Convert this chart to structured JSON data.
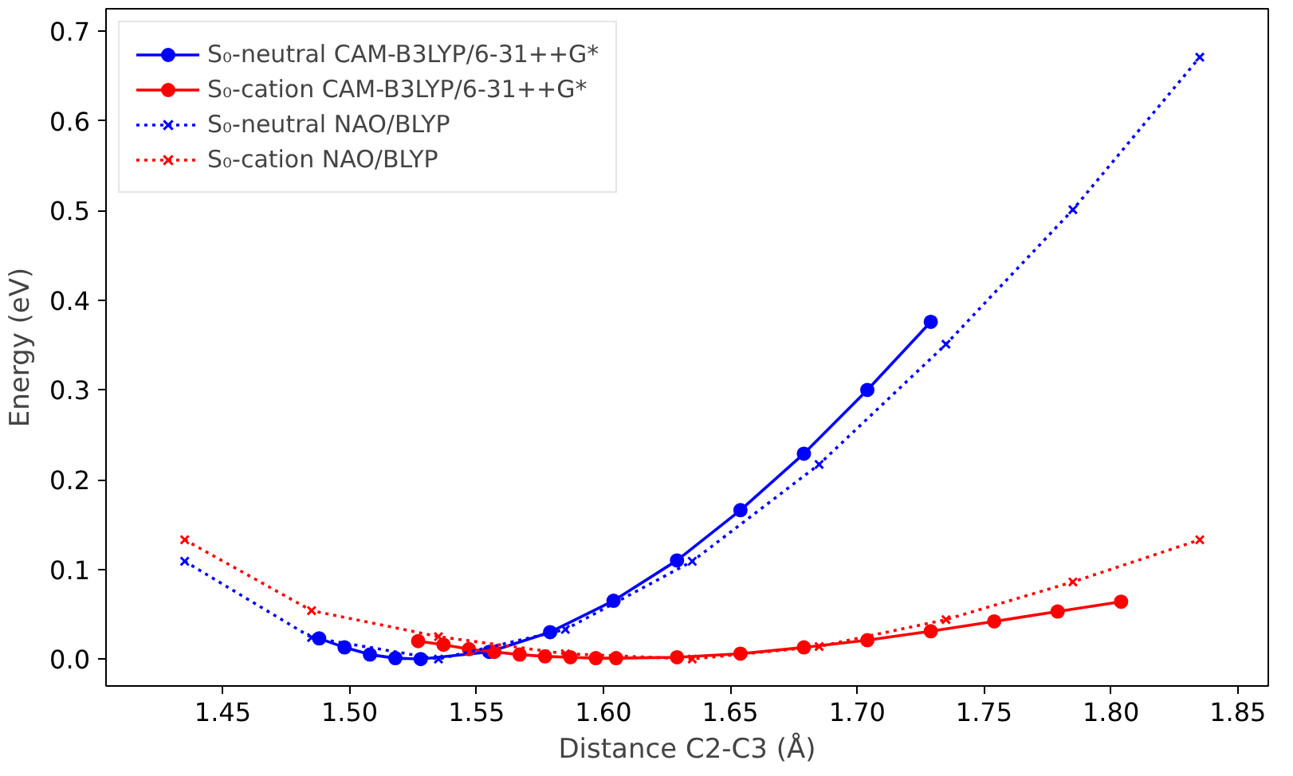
{
  "chart_data": {
    "type": "line",
    "xlabel": "Distance C2-C3 (Å)",
    "ylabel": "Energy (eV)",
    "xlim": [
      1.404,
      1.862
    ],
    "ylim": [
      -0.03,
      0.725
    ],
    "xticks": [
      {
        "value": 1.45,
        "label": "1.45"
      },
      {
        "value": 1.5,
        "label": "1.50"
      },
      {
        "value": 1.55,
        "label": "1.55"
      },
      {
        "value": 1.6,
        "label": "1.60"
      },
      {
        "value": 1.65,
        "label": "1.65"
      },
      {
        "value": 1.7,
        "label": "1.70"
      },
      {
        "value": 1.75,
        "label": "1.75"
      },
      {
        "value": 1.8,
        "label": "1.80"
      },
      {
        "value": 1.85,
        "label": "1.85"
      }
    ],
    "yticks": [
      {
        "value": 0,
        "label": "0.0"
      },
      0.1,
      0.2,
      0.3,
      0.4,
      0.5,
      0.6,
      0.7
    ],
    "grid": false,
    "legend": "top left",
    "series": [
      {
        "name": "S₀-neutral CAM-B3LYP/6-31++G*",
        "color": "#0000ff",
        "marker": "circle",
        "line_style": "solid",
        "x": [
          1.488,
          1.498,
          1.508,
          1.518,
          1.528,
          1.555,
          1.579,
          1.604,
          1.629,
          1.654,
          1.679,
          1.704,
          1.729
        ],
        "values": [
          0.023,
          0.013,
          0.005,
          0.001,
          0.0,
          0.008,
          0.03,
          0.065,
          0.11,
          0.166,
          0.229,
          0.3,
          0.376
        ]
      },
      {
        "name": "S₀-cation CAM-B3LYP/6-31++G*",
        "color": "#ff0000",
        "marker": "circle",
        "line_style": "solid",
        "x": [
          1.527,
          1.537,
          1.547,
          1.557,
          1.567,
          1.577,
          1.587,
          1.597,
          1.605,
          1.629,
          1.654,
          1.679,
          1.704,
          1.729,
          1.754,
          1.779,
          1.804
        ],
        "values": [
          0.02,
          0.016,
          0.011,
          0.008,
          0.005,
          0.003,
          0.002,
          0.001,
          0.001,
          0.002,
          0.006,
          0.013,
          0.021,
          0.031,
          0.042,
          0.053,
          0.064
        ]
      },
      {
        "name": "S₀-neutral NAO/BLYP",
        "color": "#0000ff",
        "marker": "cross",
        "line_style": "dotted",
        "x": [
          1.435,
          1.485,
          1.535,
          1.585,
          1.635,
          1.685,
          1.735,
          1.785,
          1.835
        ],
        "values": [
          0.109,
          0.024,
          0.0,
          0.033,
          0.109,
          0.217,
          0.351,
          0.501,
          0.671
        ]
      },
      {
        "name": "S₀-cation NAO/BLYP",
        "color": "#ff0000",
        "marker": "cross",
        "line_style": "dotted",
        "x": [
          1.435,
          1.485,
          1.535,
          1.585,
          1.635,
          1.685,
          1.735,
          1.785,
          1.835
        ],
        "values": [
          0.133,
          0.054,
          0.025,
          0.006,
          0.0,
          0.014,
          0.044,
          0.086,
          0.133
        ]
      }
    ]
  }
}
